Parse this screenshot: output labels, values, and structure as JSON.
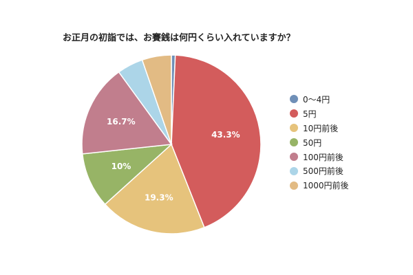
{
  "chart_data": {
    "type": "pie",
    "title": "お正月の初詣では、お賽銭は何円くらい入れていますか？",
    "categories": [
      "0〜4円",
      "5円",
      "10円前後",
      "50円",
      "100円前後",
      "500円前後",
      "1000円前後"
    ],
    "values": [
      0.7,
      43.3,
      19.3,
      10.0,
      16.7,
      4.7,
      5.3
    ],
    "data_labels": [
      "",
      "43.3%",
      "19.3%",
      "10%",
      "16.7%",
      "",
      ""
    ],
    "colors": [
      "#6f8fb7",
      "#d35c5c",
      "#e6c37c",
      "#97b466",
      "#c17e8d",
      "#acd5e8",
      "#e2bb84"
    ],
    "legend_position": "right",
    "start_angle": "top",
    "direction": "clockwise"
  }
}
